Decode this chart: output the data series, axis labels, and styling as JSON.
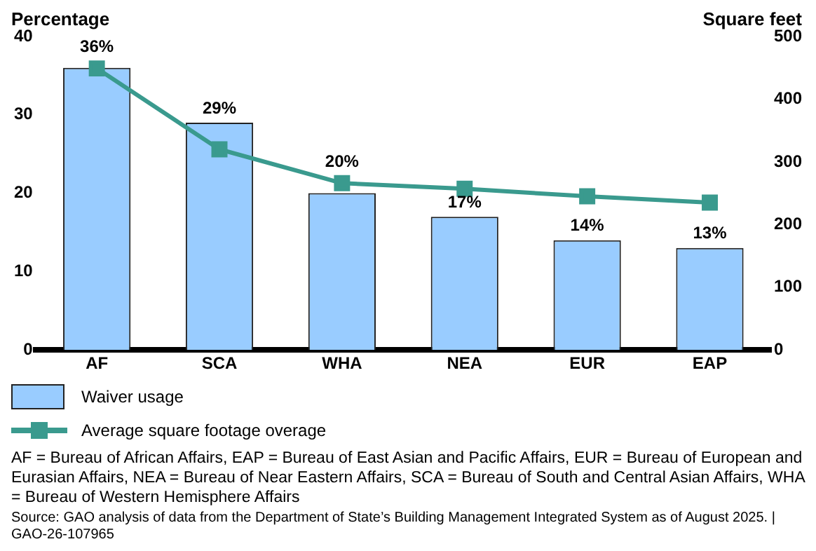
{
  "chart_data": {
    "type": "bar",
    "ylabel": "Percentage",
    "y2label": "Square feet",
    "categories": [
      "AF",
      "SCA",
      "WHA",
      "NEA",
      "EUR",
      "EAP"
    ],
    "series": [
      {
        "name": "Waiver usage",
        "color": "#99ccff",
        "values": [
          36,
          29,
          20,
          17,
          14,
          13
        ],
        "value_labels": [
          "36%",
          "29%",
          "20%",
          "17%",
          "14%",
          "13%"
        ]
      },
      {
        "name": "Average square footage overage",
        "type": "line",
        "axis": "y2",
        "color": "#3a9a8e",
        "marker": "square",
        "values": [
          449,
          320,
          266,
          257,
          245,
          235
        ]
      }
    ],
    "ylim": [
      0,
      40
    ],
    "yticks": [
      0,
      10,
      20,
      30,
      40
    ],
    "y2lim": [
      0,
      500
    ],
    "y2ticks": [
      0,
      100,
      200,
      300,
      400,
      500
    ],
    "grid": false,
    "legend": "bottom",
    "annotations": [
      "AF = Bureau of African Affairs, EAP = Bureau of East Asian and Pacific Affairs, EUR = Bureau of European and Eurasian Affairs, NEA = Bureau of Near Eastern Affairs, SCA = Bureau of South and Central Asian Affairs, WHA = Bureau of Western Hemisphere Affairs",
      "Source: GAO analysis of data from the Department of State’s Building Management Integrated System as of August 2025.  |  GAO-26-107965"
    ]
  }
}
